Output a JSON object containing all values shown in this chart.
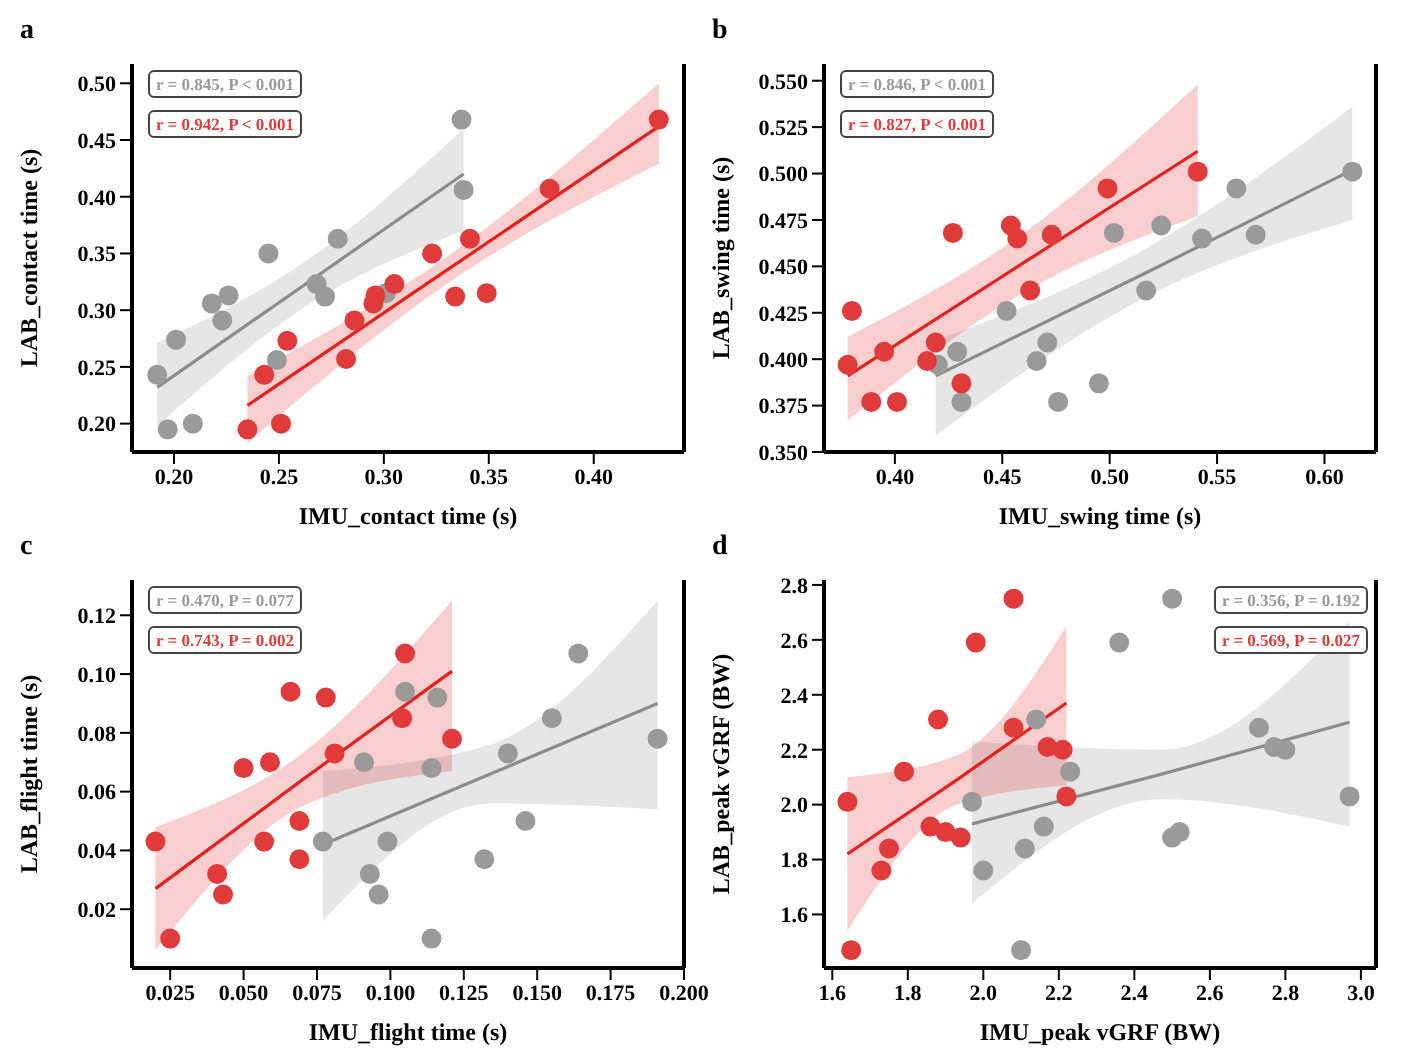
{
  "chart_data": [
    {
      "type": "scatter",
      "title": "a",
      "xlabel": "IMU_contact time (s)",
      "ylabel": "LAB_contact time (s)",
      "xlim": [
        0.18,
        0.443
      ],
      "xticks": [
        {
          "value": 0.2,
          "label": "0.20"
        },
        0.25,
        {
          "value": 0.3,
          "label": "0.30"
        },
        0.35,
        {
          "value": 0.4,
          "label": "0.40"
        }
      ],
      "ylim": [
        0.175,
        0.517
      ],
      "yticks": [
        {
          "value": 0.2,
          "label": "0.20"
        },
        0.25,
        {
          "value": 0.3,
          "label": "0.30"
        },
        0.35,
        {
          "value": 0.4,
          "label": "0.40"
        },
        0.45,
        {
          "value": 0.5,
          "label": "0.50"
        }
      ],
      "annotations": [
        "r = 0.845, P < 0.001",
        "r = 0.942, P < 0.001"
      ],
      "series": [
        {
          "type": "scatter",
          "marker": "circle",
          "color": "#9a9a9a",
          "x": [
            0.192,
            0.197,
            0.201,
            0.209,
            0.218,
            0.223,
            0.226,
            0.245,
            0.249,
            0.268,
            0.272,
            0.278,
            0.301,
            0.337,
            0.338
          ],
          "values": [
            0.243,
            0.195,
            0.274,
            0.2,
            0.306,
            0.291,
            0.313,
            0.35,
            0.256,
            0.323,
            0.312,
            0.363,
            0.315,
            0.468,
            0.406
          ]
        },
        {
          "type": "scatter",
          "marker": "circle",
          "color": "#e03a3a",
          "x": [
            0.235,
            0.243,
            0.251,
            0.254,
            0.282,
            0.286,
            0.295,
            0.296,
            0.305,
            0.323,
            0.334,
            0.341,
            0.349,
            0.379,
            0.431
          ],
          "values": [
            0.195,
            0.243,
            0.2,
            0.273,
            0.257,
            0.291,
            0.306,
            0.313,
            0.323,
            0.35,
            0.312,
            0.363,
            0.315,
            0.407,
            0.468
          ]
        },
        {
          "type": "line",
          "marker": "none",
          "color": "#8c8c8c",
          "x": [
            0.192,
            0.265,
            0.338
          ],
          "values": [
            0.232,
            0.326,
            0.42
          ],
          "lower": [
            0.198,
            0.306,
            0.37
          ],
          "upper": [
            0.271,
            0.346,
            0.46
          ]
        },
        {
          "type": "line",
          "marker": "none",
          "color": "#e3211f",
          "x": [
            0.235,
            0.333,
            0.431
          ],
          "values": [
            0.216,
            0.339,
            0.462
          ],
          "lower": [
            0.183,
            0.327,
            0.429
          ],
          "upper": [
            0.242,
            0.351,
            0.5
          ]
        }
      ]
    },
    {
      "type": "scatter",
      "title": "b",
      "xlabel": "IMU_swing time (s)",
      "ylabel": "LAB_swing time (s)",
      "xlim": [
        0.367,
        0.624
      ],
      "xticks": [
        {
          "value": 0.4,
          "label": "0.40"
        },
        0.45,
        {
          "value": 0.5,
          "label": "0.50"
        },
        0.55,
        {
          "value": 0.6,
          "label": "0.60"
        }
      ],
      "ylim": [
        0.35,
        0.559
      ],
      "yticks": [
        {
          "value": 0.35,
          "label": "0.350"
        },
        0.375,
        {
          "value": 0.4,
          "label": "0.400"
        },
        0.425,
        {
          "value": 0.45,
          "label": "0.450"
        },
        0.475,
        {
          "value": 0.5,
          "label": "0.500"
        },
        0.525,
        {
          "value": 0.55,
          "label": "0.550"
        }
      ],
      "annotations": [
        "r = 0.846, P < 0.001",
        "r = 0.827, P < 0.001"
      ],
      "series": [
        {
          "type": "scatter",
          "marker": "circle",
          "color": "#9a9a9a",
          "x": [
            0.42,
            0.429,
            0.431,
            0.452,
            0.466,
            0.471,
            0.476,
            0.495,
            0.502,
            0.517,
            0.524,
            0.543,
            0.559,
            0.568,
            0.613
          ],
          "values": [
            0.397,
            0.404,
            0.377,
            0.426,
            0.399,
            0.409,
            0.377,
            0.387,
            0.468,
            0.437,
            0.472,
            0.465,
            0.492,
            0.467,
            0.501
          ]
        },
        {
          "type": "scatter",
          "marker": "circle",
          "color": "#e03a3a",
          "x": [
            0.378,
            0.38,
            0.389,
            0.395,
            0.401,
            0.415,
            0.419,
            0.427,
            0.431,
            0.454,
            0.457,
            0.463,
            0.473,
            0.499,
            0.541
          ],
          "values": [
            0.397,
            0.426,
            0.377,
            0.404,
            0.377,
            0.399,
            0.409,
            0.468,
            0.387,
            0.472,
            0.465,
            0.437,
            0.467,
            0.492,
            0.501
          ]
        },
        {
          "type": "line",
          "marker": "none",
          "color": "#8c8c8c",
          "x": [
            0.419,
            0.516,
            0.613
          ],
          "values": [
            0.391,
            0.446,
            0.502
          ],
          "lower": [
            0.359,
            0.433,
            0.475
          ],
          "upper": [
            0.41,
            0.459,
            0.536
          ]
        },
        {
          "type": "line",
          "marker": "none",
          "color": "#e3211f",
          "x": [
            0.378,
            0.46,
            0.541
          ],
          "values": [
            0.391,
            0.452,
            0.512
          ],
          "lower": [
            0.367,
            0.436,
            0.477
          ],
          "upper": [
            0.412,
            0.468,
            0.548
          ]
        }
      ]
    },
    {
      "type": "scatter",
      "title": "c",
      "xlabel": "IMU_flight time (s)",
      "ylabel": "LAB_flight time (s)",
      "xlim": [
        0.012,
        0.2
      ],
      "xticks": [
        0.025,
        {
          "value": 0.05,
          "label": "0.050"
        },
        0.075,
        {
          "value": 0.1,
          "label": "0.100"
        },
        0.125,
        {
          "value": 0.15,
          "label": "0.150"
        },
        0.175,
        {
          "value": 0.2,
          "label": "0.200"
        }
      ],
      "ylim": [
        0,
        0.132
      ],
      "yticks": [
        0.02,
        0.04,
        0.06,
        0.08,
        {
          "value": 0.1,
          "label": "0.10"
        },
        0.12
      ],
      "annotations": [
        "r = 0.470, P = 0.077",
        "r = 0.743, P = 0.002"
      ],
      "series": [
        {
          "type": "scatter",
          "marker": "circle",
          "color": "#9a9a9a",
          "x": [
            0.077,
            0.091,
            0.093,
            0.096,
            0.099,
            0.105,
            0.114,
            0.114,
            0.116,
            0.132,
            0.14,
            0.146,
            0.155,
            0.164,
            0.191
          ],
          "values": [
            0.043,
            0.07,
            0.032,
            0.025,
            0.043,
            0.094,
            0.01,
            0.068,
            0.092,
            0.037,
            0.073,
            0.05,
            0.085,
            0.107,
            0.078
          ]
        },
        {
          "type": "scatter",
          "marker": "circle",
          "color": "#e03a3a",
          "x": [
            0.02,
            0.025,
            0.041,
            0.043,
            0.05,
            0.057,
            0.059,
            0.066,
            0.069,
            0.069,
            0.078,
            0.081,
            0.104,
            0.105,
            0.121
          ],
          "values": [
            0.043,
            0.01,
            0.032,
            0.025,
            0.068,
            0.043,
            0.07,
            0.094,
            0.037,
            0.05,
            0.092,
            0.073,
            0.085,
            0.107,
            0.078
          ]
        },
        {
          "type": "line",
          "marker": "none",
          "color": "#8c8c8c",
          "x": [
            0.077,
            0.134,
            0.191
          ],
          "values": [
            0.042,
            0.066,
            0.09
          ],
          "lower": [
            0.016,
            0.056,
            0.054
          ],
          "upper": [
            0.067,
            0.076,
            0.125
          ]
        },
        {
          "type": "line",
          "marker": "none",
          "color": "#e3211f",
          "x": [
            0.02,
            0.07,
            0.121
          ],
          "values": [
            0.027,
            0.064,
            0.101
          ],
          "lower": [
            0.006,
            0.055,
            0.067
          ],
          "upper": [
            0.048,
            0.073,
            0.125
          ]
        }
      ]
    },
    {
      "type": "scatter",
      "title": "d",
      "xlabel": "IMU_peak vGRF (BW)",
      "ylabel": "LAB_peak vGRF (BW)",
      "xlim": [
        1.578,
        3.04
      ],
      "xticks": [
        1.6,
        1.8,
        {
          "value": 2,
          "label": "2.0"
        },
        2.2,
        2.4,
        2.6,
        2.8,
        {
          "value": 3,
          "label": "3.0"
        }
      ],
      "ylim": [
        1.405,
        2.818
      ],
      "yticks": [
        1.6,
        1.8,
        {
          "value": 2,
          "label": "2.0"
        },
        2.2,
        2.4,
        2.6,
        2.8
      ],
      "annotations": [
        "r = 0.356, P = 0.192",
        "r = 0.569, P = 0.027"
      ],
      "series": [
        {
          "type": "scatter",
          "marker": "circle",
          "color": "#9a9a9a",
          "x": [
            1.97,
            2.0,
            2.1,
            2.11,
            2.14,
            2.16,
            2.23,
            2.36,
            2.5,
            2.5,
            2.52,
            2.73,
            2.77,
            2.8,
            2.97
          ],
          "values": [
            2.01,
            1.76,
            1.47,
            1.84,
            2.31,
            1.92,
            2.12,
            2.59,
            2.75,
            1.88,
            1.9,
            2.28,
            2.21,
            2.2,
            2.03
          ]
        },
        {
          "type": "scatter",
          "marker": "circle",
          "color": "#e03a3a",
          "x": [
            1.64,
            1.65,
            1.73,
            1.75,
            1.79,
            1.86,
            1.88,
            1.9,
            1.94,
            1.98,
            2.08,
            2.08,
            2.17,
            2.21,
            2.22
          ],
          "values": [
            2.01,
            1.47,
            1.76,
            1.84,
            2.12,
            1.92,
            2.31,
            1.9,
            1.88,
            2.59,
            2.28,
            2.75,
            2.21,
            2.2,
            2.03
          ]
        },
        {
          "type": "line",
          "marker": "none",
          "color": "#8c8c8c",
          "x": [
            1.97,
            2.47,
            2.97
          ],
          "values": [
            1.93,
            2.11,
            2.3
          ],
          "lower": [
            1.64,
            2.02,
            1.92
          ],
          "upper": [
            2.23,
            2.2,
            2.67
          ]
        },
        {
          "type": "line",
          "marker": "none",
          "color": "#e3211f",
          "x": [
            1.64,
            1.93,
            2.22
          ],
          "values": [
            1.82,
            2.09,
            2.37
          ],
          "lower": [
            1.54,
            2.0,
            2.07
          ],
          "upper": [
            2.1,
            2.18,
            2.65
          ]
        }
      ]
    }
  ]
}
